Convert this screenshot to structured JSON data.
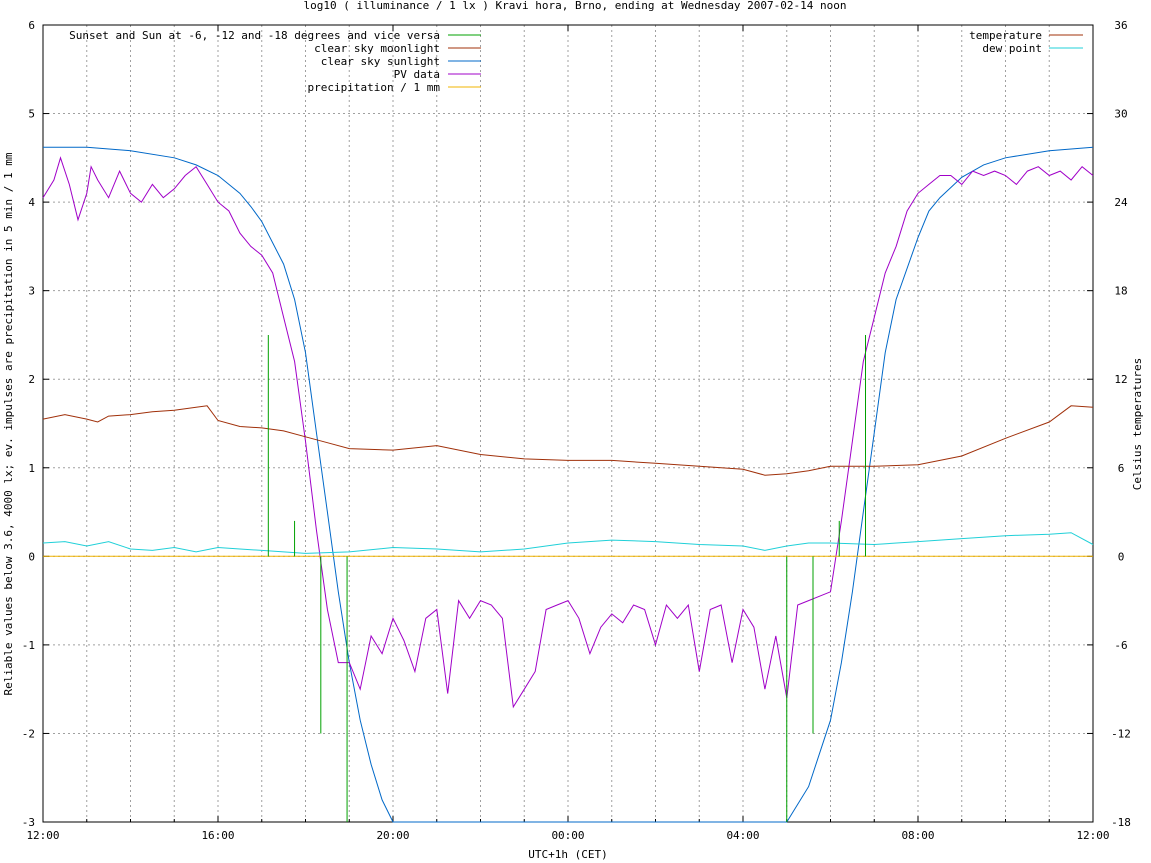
{
  "chart_data": {
    "type": "line",
    "title": "log10 ( illuminance / 1 lx ) Kravi hora, Brno, ending at Wednesday 2007-02-14 noon",
    "xlabel": "UTC+1h (CET)",
    "ylabel": "Reliable values below 3.6, 4000 lx; ev. impulses are precipitation in 5 min / 1 mm",
    "y2label": "Celsius temperatures",
    "xlim": [
      0,
      24
    ],
    "ylim": [
      -3,
      6
    ],
    "y2lim": [
      -18,
      36
    ],
    "x_ticks": [
      {
        "v": 0,
        "label": "12:00"
      },
      {
        "v": 4,
        "label": "16:00"
      },
      {
        "v": 8,
        "label": "20:00"
      },
      {
        "v": 12,
        "label": "00:00"
      },
      {
        "v": 16,
        "label": "04:00"
      },
      {
        "v": 20,
        "label": "08:00"
      },
      {
        "v": 24,
        "label": "12:00"
      }
    ],
    "y_ticks": [
      {
        "v": -3,
        "label": "-3"
      },
      {
        "v": -2,
        "label": "-2"
      },
      {
        "v": -1,
        "label": "-1"
      },
      {
        "v": 0,
        "label": "0"
      },
      {
        "v": 1,
        "label": "1"
      },
      {
        "v": 2,
        "label": "2"
      },
      {
        "v": 3,
        "label": "3"
      },
      {
        "v": 4,
        "label": "4"
      },
      {
        "v": 5,
        "label": "5"
      },
      {
        "v": 6,
        "label": "6"
      }
    ],
    "y2_ticks": [
      {
        "v": -18,
        "label": "-18"
      },
      {
        "v": -12,
        "label": "-12"
      },
      {
        "v": -6,
        "label": "-6"
      },
      {
        "v": 0,
        "label": "0"
      },
      {
        "v": 6,
        "label": "6"
      },
      {
        "v": 12,
        "label": "12"
      },
      {
        "v": 18,
        "label": "18"
      },
      {
        "v": 24,
        "label": "24"
      },
      {
        "v": 30,
        "label": "30"
      },
      {
        "v": 36,
        "label": "36"
      }
    ],
    "minor_grid_step": 1,
    "grid": true,
    "legend_left": {
      "placement": "top-left",
      "entries": [
        {
          "name": "Sunset and Sun at -6, -12 and -18 degrees and vice versa",
          "color": "#00a000"
        },
        {
          "name": "clear sky moonlight",
          "color": "#a0300a"
        },
        {
          "name": "clear sky sunlight",
          "color": "#0068c8"
        },
        {
          "name": "PV data",
          "color": "#a000c8"
        },
        {
          "name": "precipitation / 1 mm",
          "color": "#f0b400"
        }
      ]
    },
    "legend_right": {
      "placement": "top-right",
      "entries": [
        {
          "name": "temperature",
          "color": "#a0300a"
        },
        {
          "name": "dew point",
          "color": "#20d0d8"
        }
      ]
    },
    "series": [
      {
        "name": "clear sky sunlight",
        "color": "#0068c8",
        "axis": "y",
        "x": [
          0,
          1,
          2,
          3,
          3.5,
          4,
          4.5,
          4.75,
          5,
          5.5,
          5.75,
          6,
          6.25,
          6.5,
          6.75,
          7,
          7.25,
          7.5,
          7.75,
          8,
          8.2,
          8.4,
          16.8,
          17,
          17.5,
          18,
          18.25,
          18.5,
          18.75,
          19,
          19.25,
          19.5,
          20,
          20.25,
          20.5,
          21,
          21.5,
          22,
          23,
          24
        ],
        "y": [
          4.62,
          4.62,
          4.58,
          4.5,
          4.42,
          4.3,
          4.1,
          3.95,
          3.78,
          3.3,
          2.9,
          2.3,
          1.4,
          0.5,
          -0.4,
          -1.2,
          -1.85,
          -2.35,
          -2.75,
          -3.0,
          -3.2,
          -3.3,
          -3.3,
          -3.2,
          -2.6,
          -1.85,
          -1.2,
          -0.4,
          0.5,
          1.4,
          2.3,
          2.9,
          3.6,
          3.9,
          4.05,
          4.28,
          4.42,
          4.5,
          4.58,
          4.62
        ]
      },
      {
        "name": "PV data",
        "color": "#a000c8",
        "axis": "y",
        "x": [
          0,
          0.25,
          0.4,
          0.6,
          0.8,
          1.0,
          1.1,
          1.25,
          1.5,
          1.75,
          1.9,
          2.0,
          2.25,
          2.5,
          2.75,
          3.0,
          3.25,
          3.5,
          3.75,
          4.0,
          4.25,
          4.5,
          4.75,
          5.0,
          5.25,
          5.5,
          5.75,
          6.0,
          6.25,
          6.5,
          6.75,
          7.0,
          7.25,
          7.5,
          7.75,
          8.0,
          8.25,
          8.5,
          8.75,
          9.0,
          9.25,
          9.5,
          9.75,
          10.0,
          10.25,
          10.5,
          10.75,
          11.0,
          11.25,
          11.5,
          11.75,
          12.0,
          12.25,
          12.5,
          12.75,
          13.0,
          13.25,
          13.5,
          13.75,
          14.0,
          14.25,
          14.5,
          14.75,
          15.0,
          15.25,
          15.5,
          15.75,
          16.0,
          16.25,
          16.5,
          16.75,
          17.0,
          17.25,
          17.5,
          17.75,
          18.0,
          18.25,
          18.5,
          18.75,
          19.0,
          19.25,
          19.5,
          19.75,
          20.0,
          20.25,
          20.5,
          20.75,
          21.0,
          21.25,
          21.5,
          21.75,
          22.0,
          22.25,
          22.5,
          22.75,
          23.0,
          23.25,
          23.5,
          23.75,
          24.0
        ],
        "y": [
          4.05,
          4.25,
          4.5,
          4.2,
          3.8,
          4.1,
          4.4,
          4.25,
          4.05,
          4.35,
          4.2,
          4.1,
          4.0,
          4.2,
          4.05,
          4.15,
          4.3,
          4.4,
          4.2,
          4.0,
          3.9,
          3.65,
          3.5,
          3.4,
          3.2,
          2.7,
          2.2,
          1.3,
          0.3,
          -0.6,
          -1.2,
          -1.2,
          -1.5,
          -0.9,
          -1.1,
          -0.7,
          -0.95,
          -1.3,
          -0.7,
          -0.6,
          -1.55,
          -0.5,
          -0.7,
          -0.5,
          -0.55,
          -0.7,
          -1.7,
          -1.5,
          -1.3,
          -0.6,
          -0.55,
          -0.5,
          -0.7,
          -1.1,
          -0.8,
          -0.65,
          -0.75,
          -0.55,
          -0.6,
          -1.0,
          -0.55,
          -0.7,
          -0.55,
          -1.3,
          -0.6,
          -0.55,
          -1.2,
          -0.6,
          -0.8,
          -1.5,
          -0.9,
          -1.6,
          -0.55,
          -0.5,
          -0.45,
          -0.4,
          0.4,
          1.3,
          2.2,
          2.7,
          3.2,
          3.5,
          3.9,
          4.1,
          4.2,
          4.3,
          4.3,
          4.2,
          4.35,
          4.3,
          4.35,
          4.3,
          4.2,
          4.35,
          4.4,
          4.3,
          4.35,
          4.25,
          4.4,
          4.3
        ]
      },
      {
        "name": "temperature",
        "color": "#a0300a",
        "axis": "y2",
        "x": [
          0,
          0.5,
          1.0,
          1.25,
          1.5,
          2.0,
          2.5,
          3.0,
          3.5,
          3.75,
          4.0,
          4.5,
          5.0,
          5.5,
          6.0,
          6.5,
          7.0,
          8.0,
          9.0,
          10.0,
          11.0,
          12.0,
          13.0,
          14.0,
          15.0,
          16.0,
          16.5,
          17.0,
          17.5,
          18.0,
          19.0,
          20.0,
          21.0,
          22.0,
          23.0,
          23.5,
          24.0
        ],
        "y": [
          9.3,
          9.6,
          9.3,
          9.1,
          9.5,
          9.6,
          9.8,
          9.9,
          10.1,
          10.2,
          9.2,
          8.8,
          8.7,
          8.5,
          8.1,
          7.7,
          7.3,
          7.2,
          7.5,
          6.9,
          6.6,
          6.5,
          6.5,
          6.3,
          6.1,
          5.9,
          5.5,
          5.6,
          5.8,
          6.1,
          6.1,
          6.2,
          6.8,
          8.0,
          9.1,
          10.2,
          10.1
        ]
      },
      {
        "name": "dew point",
        "color": "#20d0d8",
        "axis": "y2",
        "x": [
          0,
          0.5,
          1.0,
          1.5,
          2.0,
          2.5,
          3.0,
          3.5,
          4.0,
          4.5,
          5.0,
          6.0,
          7.0,
          8.0,
          9.0,
          10.0,
          11.0,
          12.0,
          13.0,
          14.0,
          15.0,
          16.0,
          16.5,
          17.0,
          17.5,
          18.0,
          19.0,
          20.0,
          21.0,
          22.0,
          23.0,
          23.5,
          24.0
        ],
        "y": [
          0.9,
          1.0,
          0.7,
          1.0,
          0.5,
          0.4,
          0.6,
          0.3,
          0.6,
          0.5,
          0.4,
          0.2,
          0.3,
          0.6,
          0.5,
          0.3,
          0.5,
          0.9,
          1.1,
          1.0,
          0.8,
          0.7,
          0.4,
          0.7,
          0.9,
          0.9,
          0.8,
          1.0,
          1.2,
          1.4,
          1.5,
          1.6,
          0.8
        ]
      },
      {
        "name": "precipitation / 1 mm",
        "color": "#f0b400",
        "axis": "y",
        "x": [
          0,
          24
        ],
        "y": [
          0,
          0
        ]
      }
    ],
    "impulses": {
      "name": "Sunset and Sun at -6, -12 and -18 degrees and vice versa",
      "color": "#00a000",
      "x": [
        5.15,
        5.75,
        6.35,
        6.95,
        17.0,
        17.6,
        18.2,
        18.8
      ],
      "y": [
        2.5,
        0.4,
        0,
        0,
        0,
        0,
        0.4,
        2.5
      ],
      "y_bottom": [
        0,
        0,
        -2.0,
        -3.0,
        -3.0,
        -2.0,
        0,
        0
      ]
    }
  }
}
